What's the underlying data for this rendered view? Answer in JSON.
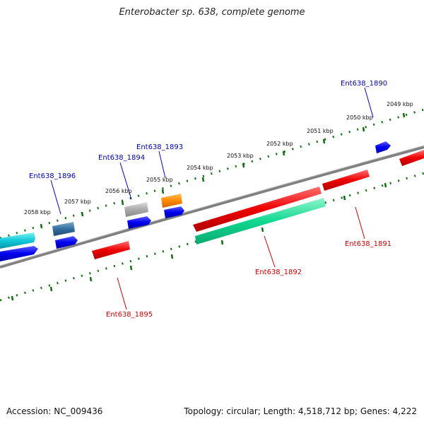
{
  "title": "Enterobacter sp. 638, complete genome",
  "footer": {
    "accession": "Accession: NC_009436",
    "summary": "Topology: circular; Length: 4,518,712 bp; Genes: 4,222"
  },
  "chart_data": {
    "type": "genome-map",
    "ticks": [
      "2049 kbp",
      "2050 kbp",
      "2051 kbp",
      "2052 kbp",
      "2053 kbp",
      "2054 kbp",
      "2055 kbp",
      "2056 kbp",
      "2057 kbp",
      "2058 kbp"
    ],
    "gene_labels": {
      "forward": [
        "Ent638_1890",
        "Ent638_1893",
        "Ent638_1894",
        "Ent638_1896"
      ],
      "reverse": [
        "Ent638_1891",
        "Ent638_1892",
        "Ent638_1895"
      ]
    },
    "colors": {
      "forward_label": "#0000aa",
      "reverse_label": "#cc0000",
      "forward_cds": "#0000ee",
      "reverse_cds": "#ee0000",
      "rna": "#10d890",
      "trna": "#ff8800",
      "pseudo": "#aaaaaa",
      "misc": "#3070a0",
      "cyan_feature": "#10c8d8",
      "tick": "#107010",
      "backbone": "#808080"
    }
  }
}
